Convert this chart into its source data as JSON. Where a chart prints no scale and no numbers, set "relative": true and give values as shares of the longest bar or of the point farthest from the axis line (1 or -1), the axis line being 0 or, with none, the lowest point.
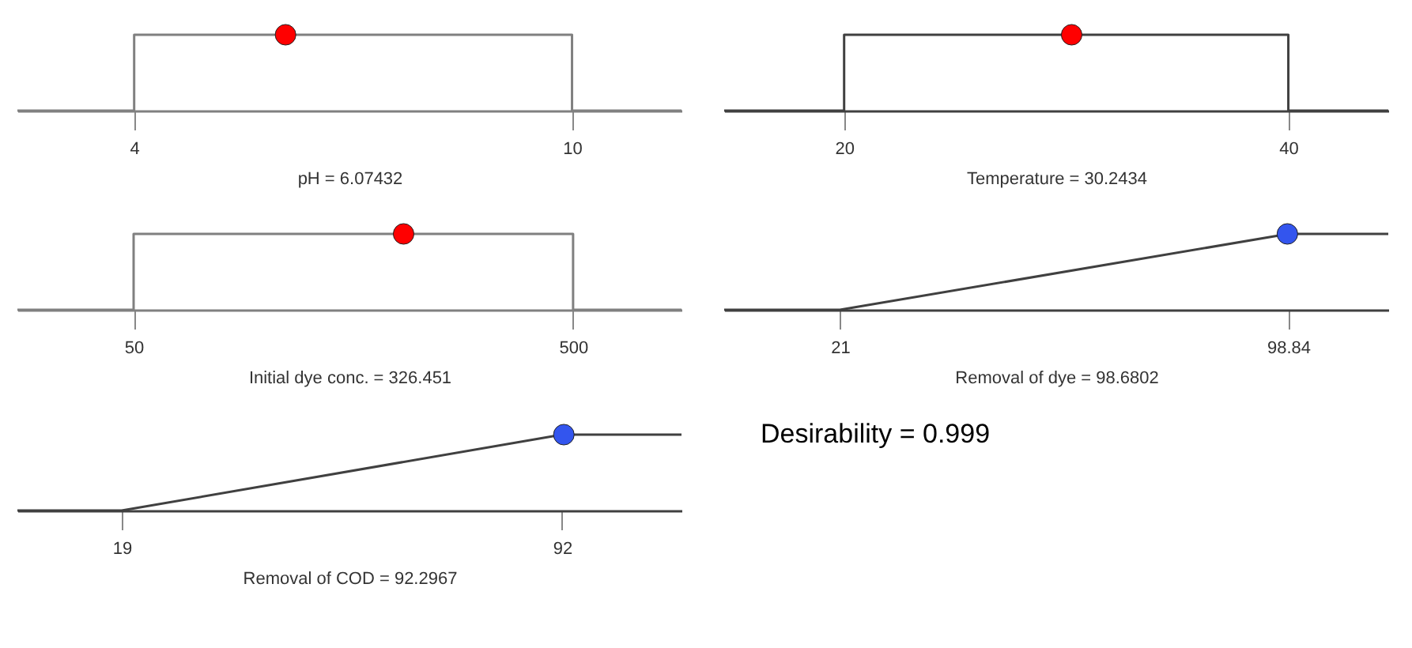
{
  "chart_data": [
    {
      "type": "line",
      "relative": true,
      "xlabel": "pH = 6.07432",
      "xlim": [
        2.4,
        11.5
      ],
      "xticks": [
        4,
        10
      ],
      "grid": false,
      "series": [
        {
          "x": [
            2.4,
            4,
            4,
            10,
            10,
            11.5
          ],
          "values": [
            0,
            0,
            1,
            1,
            0,
            0
          ],
          "color": "#808080"
        },
        {
          "type": "scatter",
          "marker": "circle",
          "x": [
            6.07432
          ],
          "values": [
            1
          ],
          "color": "#ff0000"
        }
      ]
    },
    {
      "type": "line",
      "relative": true,
      "xlabel": "Temperature = 30.2434",
      "xlim": [
        14.6,
        44.5
      ],
      "xticks": [
        20,
        40
      ],
      "grid": false,
      "series": [
        {
          "x": [
            14.6,
            20,
            20,
            40,
            40,
            44.5
          ],
          "values": [
            0,
            0,
            1,
            1,
            0,
            0
          ],
          "color": "#404040"
        },
        {
          "type": "scatter",
          "marker": "circle",
          "x": [
            30.2434
          ],
          "values": [
            1
          ],
          "color": "#ff0000"
        }
      ]
    },
    {
      "type": "line",
      "relative": true,
      "xlabel": "Initial dye conc. = 326.451",
      "xlim": [
        -69,
        611
      ],
      "xticks": [
        50,
        500
      ],
      "grid": false,
      "series": [
        {
          "x": [
            -69,
            50,
            50,
            500,
            500,
            611
          ],
          "values": [
            0,
            0,
            1,
            1,
            0,
            0
          ],
          "color": "#808080"
        },
        {
          "type": "scatter",
          "marker": "circle",
          "x": [
            326.451
          ],
          "values": [
            1
          ],
          "color": "#ff0000"
        }
      ]
    },
    {
      "type": "line",
      "relative": true,
      "xlabel": "Removal of dye = 98.6802",
      "xlim": [
        0.9,
        116.2
      ],
      "xticks": [
        21,
        98.84
      ],
      "grid": false,
      "series": [
        {
          "x": [
            0.9,
            21,
            98.84,
            116.2
          ],
          "values": [
            0,
            0,
            1,
            1
          ],
          "color": "#404040"
        },
        {
          "type": "scatter",
          "marker": "circle",
          "x": [
            98.6802
          ],
          "values": [
            1
          ],
          "color": "#3355ee"
        }
      ]
    },
    {
      "type": "line",
      "relative": true,
      "xlabel": "Removal of COD = 92.2967",
      "xlim": [
        1.7,
        111.8
      ],
      "xticks": [
        19,
        92
      ],
      "grid": false,
      "annotations": [
        "Desirability = 0.999"
      ],
      "series": [
        {
          "x": [
            1.7,
            19,
            92,
            111.8
          ],
          "values": [
            0,
            0,
            1,
            1
          ],
          "color": "#404040"
        },
        {
          "type": "scatter",
          "marker": "circle",
          "x": [
            92.2967
          ],
          "values": [
            1
          ],
          "color": "#3355ee"
        }
      ]
    }
  ]
}
